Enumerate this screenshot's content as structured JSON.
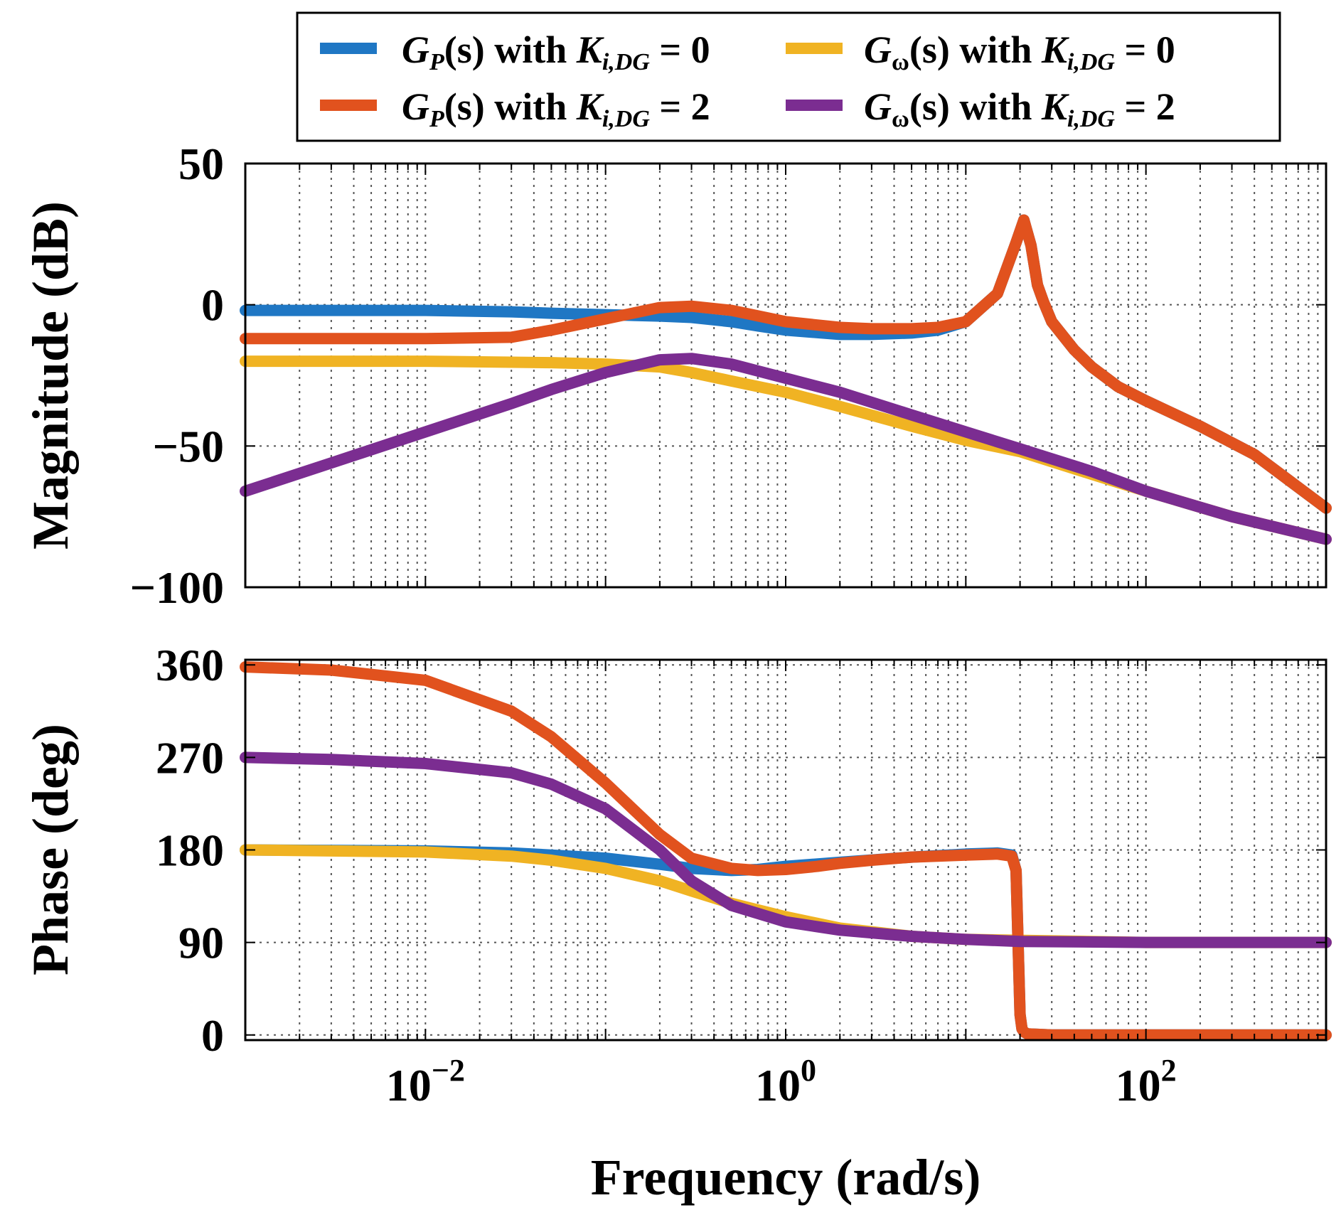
{
  "chart_data": [
    {
      "type": "line",
      "title": "",
      "xlabel": "",
      "ylabel": "Magnitude (dB)",
      "xscale": "log",
      "xlim": [
        0.001,
        1000
      ],
      "ylim": [
        -100,
        50
      ],
      "yticks": [
        50,
        0,
        -50,
        -100
      ],
      "ytick_labels": [
        "50",
        "0",
        "−50",
        "−100"
      ],
      "grid": true,
      "series": [
        {
          "name": "G_P(s) with K_i,DG = 0",
          "color": "#1f77c4",
          "x": [
            0.001,
            0.003,
            0.01,
            0.03,
            0.05,
            0.1,
            0.2,
            0.3,
            0.5,
            0.7,
            1,
            2,
            3,
            5,
            7,
            10,
            15,
            19,
            21,
            23,
            25,
            27,
            30,
            40,
            50,
            70,
            100,
            200,
            400,
            1000
          ],
          "y": [
            -2,
            -2,
            -2,
            -2.5,
            -3,
            -3.5,
            -4,
            -4.5,
            -6,
            -7.5,
            -9,
            -10.5,
            -10.5,
            -10,
            -9,
            -6,
            4,
            22,
            30,
            21,
            7,
            1,
            -6,
            -16,
            -22,
            -29,
            -34,
            -43,
            -53,
            -72
          ]
        },
        {
          "name": "G_ω(s) with K_i,DG = 0",
          "color": "#f0b323",
          "x": [
            0.001,
            0.01,
            0.05,
            0.1,
            0.2,
            0.3,
            0.5,
            1,
            2,
            5,
            10,
            20,
            50,
            100,
            300,
            1000
          ],
          "y": [
            -20,
            -20,
            -20.5,
            -21,
            -22,
            -24,
            -27,
            -31,
            -36,
            -43,
            -48,
            -52,
            -60,
            -66,
            -75,
            -83
          ]
        },
        {
          "name": "G_P(s) with K_i,DG = 2",
          "color": "#e1521e",
          "x": [
            0.001,
            0.01,
            0.03,
            0.05,
            0.1,
            0.2,
            0.3,
            0.5,
            1,
            2,
            3,
            5,
            7,
            10,
            15,
            19,
            21,
            23,
            25,
            27,
            30,
            40,
            50,
            70,
            100,
            200,
            400,
            1000
          ],
          "y": [
            -12,
            -12,
            -11.5,
            -9,
            -5,
            -1,
            -0.5,
            -2,
            -6,
            -8,
            -8.5,
            -8.5,
            -8,
            -6,
            4,
            22,
            30,
            21,
            7,
            1,
            -6,
            -16,
            -22,
            -29,
            -34,
            -43,
            -53,
            -72
          ]
        },
        {
          "name": "G_ω(s) with K_i,DG = 2",
          "color": "#7b2d91",
          "x": [
            0.001,
            0.003,
            0.01,
            0.03,
            0.05,
            0.1,
            0.2,
            0.3,
            0.5,
            1,
            2,
            5,
            10,
            20,
            50,
            100,
            300,
            1000
          ],
          "y": [
            -66,
            -56,
            -45,
            -35,
            -30,
            -24,
            -19.5,
            -19,
            -21,
            -26,
            -31,
            -39,
            -45,
            -51,
            -59,
            -66,
            -75,
            -83
          ]
        }
      ]
    },
    {
      "type": "line",
      "title": "",
      "xlabel": "Frequency (rad/s)",
      "ylabel": "Phase (deg)",
      "xscale": "log",
      "xlim": [
        0.001,
        1000
      ],
      "ylim": [
        -5,
        365
      ],
      "yticks": [
        360,
        270,
        180,
        90,
        0
      ],
      "ytick_labels": [
        "360",
        "270",
        "180",
        "90",
        "0"
      ],
      "xticks": [
        0.01,
        1,
        100
      ],
      "xtick_labels": [
        {
          "base": "10",
          "exp": "−2"
        },
        {
          "base": "10",
          "exp": "0"
        },
        {
          "base": "10",
          "exp": "2"
        }
      ],
      "grid": true,
      "series": [
        {
          "name": "G_P(s) with K_i,DG = 0",
          "color": "#1f77c4",
          "x": [
            0.001,
            0.01,
            0.03,
            0.05,
            0.1,
            0.2,
            0.3,
            0.5,
            0.7,
            1,
            2,
            5,
            10,
            15,
            18,
            19,
            19.5,
            20,
            20.5,
            21,
            22,
            30,
            100,
            1000
          ],
          "y": [
            180,
            179,
            177,
            175,
            172,
            166,
            162,
            160,
            161,
            164,
            168,
            173,
            176,
            177,
            175,
            160,
            90,
            20,
            6,
            3,
            1,
            0,
            0,
            0
          ]
        },
        {
          "name": "G_ω(s) with K_i,DG = 0",
          "color": "#f0b323",
          "x": [
            0.001,
            0.01,
            0.03,
            0.05,
            0.1,
            0.2,
            0.3,
            0.5,
            1,
            2,
            5,
            10,
            100,
            1000
          ],
          "y": [
            180,
            178,
            174,
            170,
            162,
            150,
            140,
            128,
            115,
            104,
            96,
            93,
            90,
            90
          ]
        },
        {
          "name": "G_P(s) with K_i,DG = 2",
          "color": "#e1521e",
          "x": [
            0.001,
            0.003,
            0.01,
            0.03,
            0.05,
            0.1,
            0.2,
            0.3,
            0.5,
            0.7,
            1,
            1.5,
            2,
            3,
            5,
            10,
            15,
            18,
            19,
            19.5,
            20,
            20.5,
            21,
            22,
            30,
            100,
            1000
          ],
          "y": [
            358,
            355,
            345,
            315,
            290,
            245,
            195,
            172,
            162,
            160,
            161,
            164,
            167,
            170,
            173,
            175,
            176,
            174,
            160,
            90,
            20,
            6,
            3,
            1,
            0,
            0,
            0
          ]
        },
        {
          "name": "G_ω(s) with K_i,DG = 2",
          "color": "#7b2d91",
          "x": [
            0.001,
            0.003,
            0.01,
            0.03,
            0.05,
            0.1,
            0.2,
            0.3,
            0.5,
            1,
            2,
            5,
            10,
            20,
            100,
            1000
          ],
          "y": [
            270,
            268,
            264,
            255,
            244,
            220,
            180,
            150,
            126,
            110,
            102,
            96,
            93,
            91,
            90,
            90
          ]
        }
      ]
    }
  ],
  "legend": {
    "placement": "top",
    "entries": [
      {
        "series": "G_P(s) with K_i,DG = 0",
        "color": "#1f77c4",
        "g": "G",
        "sub_g": "P",
        "arg": "(s)",
        "with": " with ",
        "k": "K",
        "k_sub": "i,DG",
        "value": " = 0"
      },
      {
        "series": "G_ω(s) with K_i,DG = 0",
        "color": "#f0b323",
        "g": "G",
        "sub_g": "ω",
        "arg": "(s)",
        "with": " with ",
        "k": "K",
        "k_sub": "i,DG",
        "value": " = 0"
      },
      {
        "series": "G_P(s) with K_i,DG = 2",
        "color": "#e1521e",
        "g": "G",
        "sub_g": "P",
        "arg": "(s)",
        "with": " with ",
        "k": "K",
        "k_sub": "i,DG",
        "value": " = 2"
      },
      {
        "series": "G_ω(s) with K_i,DG = 2",
        "color": "#7b2d91",
        "g": "G",
        "sub_g": "ω",
        "arg": "(s)",
        "with": " with ",
        "k": "K",
        "k_sub": "i,DG",
        "value": " = 2"
      }
    ]
  }
}
